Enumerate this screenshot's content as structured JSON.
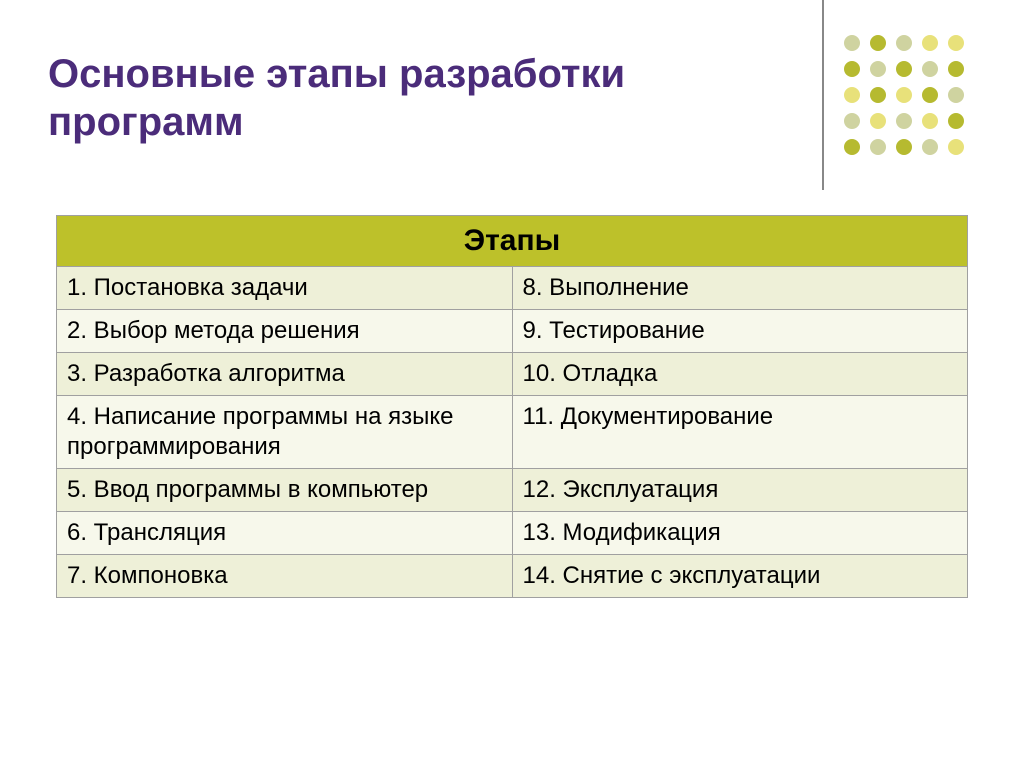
{
  "title": "Основные этапы разработки программ",
  "title_color": "#4b2c7a",
  "table": {
    "header": "Этапы",
    "header_bg": "#bdc12a",
    "row_bg_odd": "#eef0d8",
    "row_bg_even": "#f7f8eb",
    "border_color": "#a0a0a0",
    "font_size_header": 30,
    "font_size_cell": 24,
    "rows": [
      {
        "left": "1. Постановка задачи",
        "right": "8. Выполнение"
      },
      {
        "left": "2. Выбор метода решения",
        "right": "9. Тестирование"
      },
      {
        "left": "3. Разработка алгоритма",
        "right": "10. Отладка"
      },
      {
        "left": "4. Написание программы на языке программирования",
        "right": "11. Документирование"
      },
      {
        "left": "5. Ввод программы в компьютер",
        "right": "12. Эксплуатация"
      },
      {
        "left": "6. Трансляция",
        "right": "13. Модификация"
      },
      {
        "left": "7. Компоновка",
        "right": "14. Снятие с эксплуатации"
      }
    ]
  },
  "decoration": {
    "vline_color": "#888888",
    "vline_height": 190,
    "dots": {
      "radius": 8,
      "spacing": 26,
      "colors": [
        [
          "#cfd3a0",
          "#b6ba30",
          "#cfd3a0",
          "#e8e17a",
          "#e8e17a"
        ],
        [
          "#b6ba30",
          "#cfd3a0",
          "#b6ba30",
          "#cfd3a0",
          "#b6ba30"
        ],
        [
          "#e8e17a",
          "#b6ba30",
          "#e8e17a",
          "#b6ba30",
          "#cfd3a0"
        ],
        [
          "#cfd3a0",
          "#e8e17a",
          "#cfd3a0",
          "#e8e17a",
          "#b6ba30"
        ],
        [
          "#b6ba30",
          "#cfd3a0",
          "#b6ba30",
          "#cfd3a0",
          "#e8e17a"
        ]
      ]
    }
  }
}
